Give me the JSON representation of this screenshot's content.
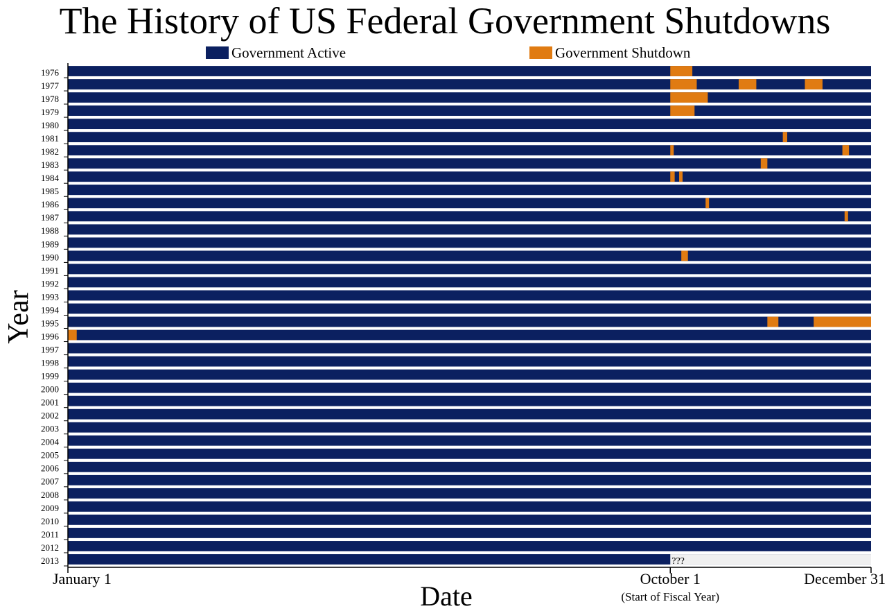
{
  "chart_data": {
    "type": "bar",
    "title": "The History of US Federal Government Shutdowns",
    "xlabel": "Date",
    "ylabel": "Year",
    "x_unit": "day of year",
    "xlim": [
      1,
      365
    ],
    "x_ticks": [
      {
        "day": 1,
        "label": "January 1"
      },
      {
        "day": 274,
        "label": "October 1"
      },
      {
        "day": 365,
        "label": "December 31"
      }
    ],
    "x_tick_note": "(Start of Fiscal Year)",
    "legend": {
      "position": "top",
      "entries": [
        {
          "name": "Government Active",
          "color": "#0b2060"
        },
        {
          "name": "Government Shutdown",
          "color": "#e07b12"
        }
      ]
    },
    "colors": {
      "active": "#0b2060",
      "shutdown": "#e07b12",
      "unknown": "#f0f0f0"
    },
    "years": [
      1976,
      1977,
      1978,
      1979,
      1980,
      1981,
      1982,
      1983,
      1984,
      1985,
      1986,
      1987,
      1988,
      1989,
      1990,
      1991,
      1992,
      1993,
      1994,
      1995,
      1996,
      1997,
      1998,
      1999,
      2000,
      2001,
      2002,
      2003,
      2004,
      2005,
      2006,
      2007,
      2008,
      2009,
      2010,
      2011,
      2012,
      2013
    ],
    "shutdowns": [
      {
        "year": 1976,
        "start_day": 274,
        "end_day": 284
      },
      {
        "year": 1977,
        "start_day": 274,
        "end_day": 286
      },
      {
        "year": 1977,
        "start_day": 305,
        "end_day": 313
      },
      {
        "year": 1977,
        "start_day": 335,
        "end_day": 343
      },
      {
        "year": 1978,
        "start_day": 274,
        "end_day": 291
      },
      {
        "year": 1979,
        "start_day": 274,
        "end_day": 285
      },
      {
        "year": 1981,
        "start_day": 325,
        "end_day": 327
      },
      {
        "year": 1982,
        "start_day": 274,
        "end_day": 275
      },
      {
        "year": 1982,
        "start_day": 352,
        "end_day": 355
      },
      {
        "year": 1983,
        "start_day": 315,
        "end_day": 318
      },
      {
        "year": 1984,
        "start_day": 274,
        "end_day": 276
      },
      {
        "year": 1984,
        "start_day": 278,
        "end_day": 279
      },
      {
        "year": 1986,
        "start_day": 290,
        "end_day": 291
      },
      {
        "year": 1987,
        "start_day": 353,
        "end_day": 354
      },
      {
        "year": 1990,
        "start_day": 279,
        "end_day": 282
      },
      {
        "year": 1995,
        "start_day": 318,
        "end_day": 323
      },
      {
        "year": 1995,
        "start_day": 339,
        "end_day": 365
      },
      {
        "year": 1996,
        "start_day": 1,
        "end_day": 5
      }
    ],
    "unknown": [
      {
        "year": 2013,
        "start_day": 274,
        "end_day": 365,
        "label": "???"
      }
    ]
  }
}
